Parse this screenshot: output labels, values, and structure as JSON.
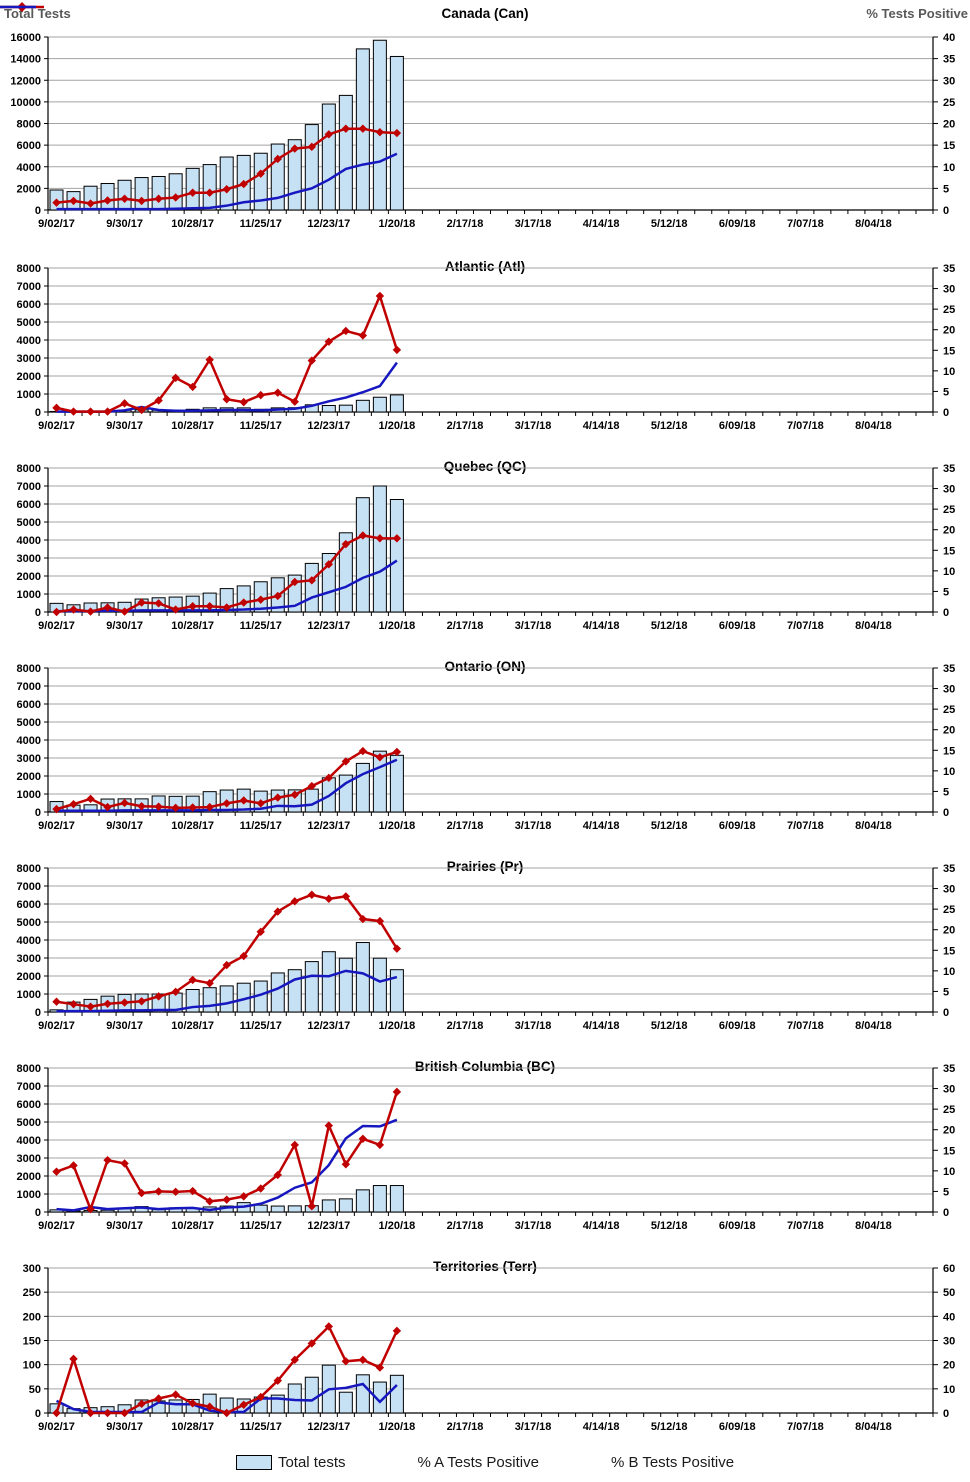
{
  "page": {
    "left_axis_label": "Total Tests",
    "right_axis_label": "% Tests Positive"
  },
  "legend": {
    "total_tests": "Total tests",
    "pct_a": "% A Tests Positive",
    "pct_b": "% B Tests Positive"
  },
  "colors": {
    "bar_fill": "#C7E1F4",
    "bar_border": "#000000",
    "line_a": "#C00000",
    "line_b": "#1717C0",
    "grid": "#A3A3A3",
    "axis": "#000000"
  },
  "x_axis": {
    "tick_labels": [
      "9/02/17",
      "9/30/17",
      "10/28/17",
      "11/25/17",
      "12/23/17",
      "1/20/18",
      "2/17/18",
      "3/17/18",
      "4/14/18",
      "5/12/18",
      "6/09/18",
      "7/07/18",
      "8/04/18"
    ],
    "weeks_total": 52,
    "label_every_n_weeks": 4,
    "data_weeks": [
      "9/02/17",
      "9/09/17",
      "9/16/17",
      "9/23/17",
      "9/30/17",
      "10/07/17",
      "10/14/17",
      "10/21/17",
      "10/28/17",
      "11/04/17",
      "11/11/17",
      "11/18/17",
      "11/25/17",
      "12/02/17",
      "12/09/17",
      "12/16/17",
      "12/23/17",
      "12/30/17",
      "1/06/18",
      "1/13/18",
      "1/20/18"
    ]
  },
  "chart_data": [
    {
      "type": "bar",
      "title": "Canada (Can)",
      "left_axis": {
        "label": "Total Tests",
        "max": 16000,
        "step": 2000
      },
      "right_axis": {
        "label": "% Tests Positive",
        "max": 40,
        "step": 5
      },
      "categories_ref": "x_axis.data_weeks",
      "series": [
        {
          "name": "Total tests",
          "type": "bar",
          "axis": "left",
          "values": [
            1850,
            1700,
            2200,
            2450,
            2750,
            3000,
            3100,
            3350,
            3850,
            4200,
            4900,
            5050,
            5250,
            6100,
            6500,
            7900,
            9800,
            10600,
            14900,
            15700,
            14200
          ]
        },
        {
          "name": "% A Tests Positive",
          "type": "line-diamond",
          "axis": "right",
          "values": [
            1.7,
            2.1,
            1.5,
            2.2,
            2.6,
            2.1,
            2.6,
            2.9,
            4.0,
            4.0,
            4.8,
            6.0,
            8.4,
            11.8,
            14.2,
            14.6,
            17.5,
            18.8,
            18.8,
            18.0,
            17.8
          ]
        },
        {
          "name": "% B Tests Positive",
          "type": "line",
          "axis": "right",
          "values": [
            0.2,
            0.2,
            0.2,
            0.2,
            0.2,
            0.2,
            0.2,
            0.3,
            0.4,
            0.5,
            1.0,
            1.8,
            2.2,
            2.8,
            4.0,
            5.0,
            7.0,
            9.5,
            10.5,
            11.2,
            13.0
          ]
        }
      ]
    },
    {
      "type": "bar",
      "title": "Atlantic (Atl)",
      "left_axis": {
        "max": 8000,
        "step": 1000
      },
      "right_axis": {
        "max": 35,
        "step": 5
      },
      "categories_ref": "x_axis.data_weeks",
      "series": [
        {
          "name": "Total tests",
          "type": "bar",
          "axis": "left",
          "values": [
            30,
            20,
            30,
            30,
            100,
            120,
            100,
            80,
            150,
            230,
            230,
            230,
            150,
            230,
            240,
            400,
            360,
            380,
            650,
            820,
            950
          ]
        },
        {
          "name": "% A Tests Positive",
          "type": "line-diamond",
          "axis": "right",
          "values": [
            1.0,
            0.1,
            0.1,
            0.1,
            2.1,
            0.5,
            2.8,
            8.3,
            6.1,
            12.7,
            3.1,
            2.4,
            4.1,
            4.7,
            2.5,
            12.5,
            17.1,
            19.7,
            18.6,
            28.2,
            15.1
          ]
        },
        {
          "name": "% B Tests Positive",
          "type": "line",
          "axis": "right",
          "values": [
            0.1,
            0.1,
            0.1,
            0.1,
            0.4,
            1.2,
            0.5,
            0.3,
            0.3,
            0.4,
            0.5,
            0.5,
            0.4,
            0.6,
            0.8,
            1.5,
            2.6,
            3.5,
            4.8,
            6.3,
            12.0
          ]
        }
      ]
    },
    {
      "type": "bar",
      "title": "Quebec (QC)",
      "left_axis": {
        "max": 8000,
        "step": 1000
      },
      "right_axis": {
        "max": 35,
        "step": 5
      },
      "categories_ref": "x_axis.data_weeks",
      "series": [
        {
          "name": "Total tests",
          "type": "bar",
          "axis": "left",
          "values": [
            480,
            400,
            500,
            510,
            540,
            720,
            790,
            830,
            880,
            1050,
            1300,
            1450,
            1680,
            1900,
            2050,
            2700,
            3250,
            4400,
            6350,
            7000,
            6250
          ]
        },
        {
          "name": "% A Tests Positive",
          "type": "line-diamond",
          "axis": "right",
          "values": [
            0.0,
            0.6,
            0.1,
            1.1,
            0.1,
            2.3,
            2.1,
            0.6,
            1.4,
            1.4,
            1.1,
            2.3,
            3.0,
            3.9,
            7.3,
            7.7,
            11.6,
            16.5,
            18.6,
            17.9,
            17.9
          ]
        },
        {
          "name": "% B Tests Positive",
          "type": "line",
          "axis": "right",
          "values": [
            0.2,
            0.2,
            0.2,
            0.3,
            0.3,
            0.4,
            0.4,
            0.4,
            0.4,
            0.4,
            0.5,
            0.6,
            0.8,
            1.1,
            1.5,
            3.5,
            4.8,
            6.1,
            8.3,
            9.8,
            12.5
          ]
        }
      ]
    },
    {
      "type": "bar",
      "title": "Ontario (ON)",
      "left_axis": {
        "max": 8000,
        "step": 1000
      },
      "right_axis": {
        "max": 35,
        "step": 5
      },
      "categories_ref": "x_axis.data_weeks",
      "series": [
        {
          "name": "Total tests",
          "type": "bar",
          "axis": "left",
          "values": [
            580,
            380,
            400,
            720,
            730,
            730,
            890,
            870,
            880,
            1130,
            1220,
            1270,
            1160,
            1220,
            1230,
            1270,
            1900,
            2050,
            2700,
            3380,
            3150
          ]
        },
        {
          "name": "% A Tests Positive",
          "type": "line-diamond",
          "axis": "right",
          "values": [
            0.7,
            1.9,
            3.2,
            1.2,
            2.2,
            1.4,
            1.3,
            1.0,
            1.1,
            1.2,
            2.1,
            2.8,
            2.1,
            3.5,
            4.2,
            6.3,
            8.3,
            12.3,
            14.8,
            13.3,
            14.6
          ]
        },
        {
          "name": "% B Tests Positive",
          "type": "line",
          "axis": "right",
          "values": [
            0.3,
            0.3,
            0.3,
            0.3,
            0.4,
            0.4,
            0.4,
            0.4,
            0.4,
            0.5,
            0.5,
            0.6,
            0.8,
            1.5,
            1.4,
            1.8,
            3.9,
            7.0,
            9.2,
            10.9,
            12.7
          ]
        }
      ]
    },
    {
      "type": "bar",
      "title": "Prairies (Pr)",
      "left_axis": {
        "max": 8000,
        "step": 1000
      },
      "right_axis": {
        "max": 35,
        "step": 5
      },
      "categories_ref": "x_axis.data_weeks",
      "series": [
        {
          "name": "Total tests",
          "type": "bar",
          "axis": "left",
          "values": [
            120,
            550,
            700,
            880,
            980,
            1000,
            1000,
            1050,
            1250,
            1350,
            1450,
            1600,
            1720,
            2170,
            2350,
            2800,
            3350,
            2990,
            3860,
            2990,
            2350
          ]
        },
        {
          "name": "% A Tests Positive",
          "type": "line-diamond",
          "axis": "right",
          "values": [
            2.5,
            1.9,
            1.3,
            2.0,
            2.3,
            2.6,
            3.8,
            4.9,
            7.8,
            7.0,
            11.4,
            13.6,
            19.5,
            24.4,
            26.9,
            28.5,
            27.5,
            28.1,
            22.6,
            22.1,
            15.4
          ]
        },
        {
          "name": "% B Tests Positive",
          "type": "line",
          "axis": "right",
          "values": [
            0.2,
            0.2,
            0.2,
            0.3,
            0.4,
            0.4,
            0.5,
            0.5,
            1.2,
            1.5,
            2.1,
            3.1,
            4.2,
            5.7,
            7.9,
            8.8,
            8.7,
            10.0,
            9.4,
            7.4,
            8.5
          ]
        }
      ]
    },
    {
      "type": "bar",
      "title": "British Columbia (BC)",
      "left_axis": {
        "max": 8000,
        "step": 1000
      },
      "right_axis": {
        "max": 35,
        "step": 5
      },
      "categories_ref": "x_axis.data_weeks",
      "series": [
        {
          "name": "Total tests",
          "type": "bar",
          "axis": "left",
          "values": [
            120,
            60,
            80,
            100,
            180,
            300,
            130,
            230,
            200,
            280,
            330,
            520,
            380,
            330,
            340,
            350,
            670,
            730,
            1230,
            1470,
            1470
          ]
        },
        {
          "name": "% A Tests Positive",
          "type": "line-diamond",
          "axis": "right",
          "values": [
            9.8,
            11.3,
            0.7,
            12.6,
            11.8,
            4.6,
            5.0,
            4.9,
            5.1,
            2.6,
            3.0,
            3.8,
            5.7,
            9.0,
            16.3,
            1.4,
            21.0,
            11.6,
            17.8,
            16.3,
            29.2
          ]
        },
        {
          "name": "% B Tests Positive",
          "type": "line",
          "axis": "right",
          "values": [
            0.7,
            0.4,
            1.2,
            0.7,
            0.9,
            1.1,
            0.7,
            0.9,
            1.0,
            0.5,
            1.1,
            1.3,
            2.0,
            3.5,
            5.9,
            7.2,
            11.4,
            17.9,
            20.9,
            20.8,
            22.4
          ]
        }
      ]
    },
    {
      "type": "bar",
      "title": "Territories (Terr)",
      "left_axis": {
        "max": 300,
        "step": 50
      },
      "right_axis": {
        "max": 60,
        "step": 10
      },
      "categories_ref": "x_axis.data_weeks",
      "series": [
        {
          "name": "Total tests",
          "type": "bar",
          "axis": "left",
          "values": [
            19,
            9,
            11,
            13,
            17,
            27,
            25,
            27,
            28,
            39,
            31,
            29,
            33,
            37,
            60,
            74,
            99,
            43,
            79,
            64,
            78
          ]
        },
        {
          "name": "% A Tests Positive",
          "type": "line-diamond",
          "axis": "right",
          "values": [
            0,
            22.4,
            0,
            0,
            0,
            3.8,
            6.0,
            7.6,
            4.0,
            2.6,
            0,
            3.4,
            6.6,
            13.4,
            22.0,
            28.8,
            35.8,
            21.4,
            22.0,
            18.8,
            34.0
          ]
        },
        {
          "name": "% B Tests Positive",
          "type": "line",
          "axis": "right",
          "values": [
            5.0,
            1.6,
            0.4,
            0.4,
            0.4,
            0.4,
            4.4,
            3.6,
            3.6,
            1.0,
            0.4,
            0.4,
            6.0,
            6.0,
            5.4,
            5.2,
            9.8,
            10.4,
            12.0,
            4.6,
            11.6
          ]
        }
      ]
    }
  ]
}
